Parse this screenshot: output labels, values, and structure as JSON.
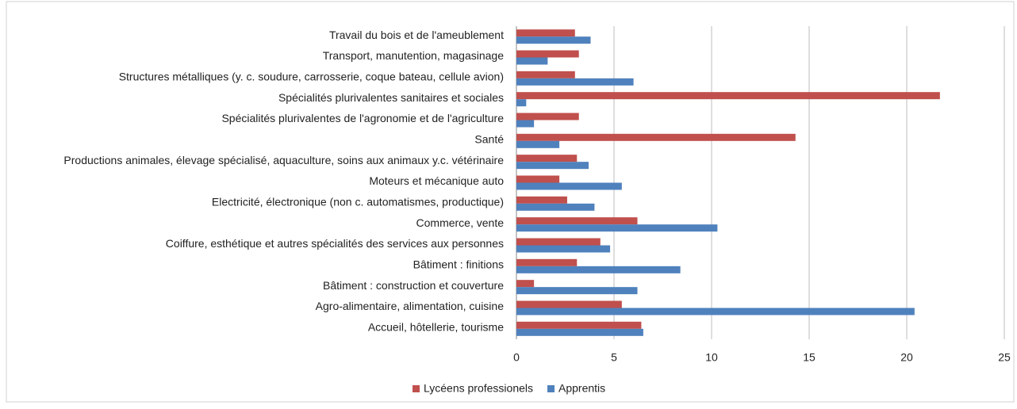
{
  "chart_data": {
    "type": "hbar",
    "categories": [
      "Accueil, hôtellerie, tourisme",
      "Agro-alimentaire, alimentation, cuisine",
      "Bâtiment : construction et couverture",
      "Bâtiment : finitions",
      "Coiffure, esthétique et autres spécialités des services aux personnes",
      "Commerce, vente",
      "Electricité, électronique (non c. automatismes, productique)",
      "Moteurs et mécanique auto",
      "Productions animales, élevage spécialisé, aquaculture, soins aux animaux y.c. vétérinaire",
      "Santé",
      "Spécialités plurivalentes de l'agronomie et de l'agriculture",
      "Spécialités plurivalentes sanitaires et sociales",
      "Structures métalliques (y. c. soudure, carrosserie, coque bateau, cellule avion)",
      "Transport, manutention, magasinage",
      "Travail du bois et de l'ameublement"
    ],
    "series": [
      {
        "name": "Lycéens professionels",
        "color": "#c0504d",
        "values": [
          6.4,
          5.4,
          0.9,
          3.1,
          4.3,
          6.2,
          2.6,
          2.2,
          3.1,
          14.3,
          3.2,
          21.7,
          3.0,
          3.2,
          3.0
        ]
      },
      {
        "name": "Apprentis",
        "color": "#4f81bd",
        "values": [
          6.5,
          20.4,
          6.2,
          8.4,
          4.8,
          10.3,
          4.0,
          5.4,
          3.7,
          2.2,
          0.9,
          0.5,
          6.0,
          1.6,
          3.8
        ]
      }
    ],
    "xlim": [
      0,
      25
    ],
    "xticks": [
      0,
      5,
      10,
      15,
      20,
      25
    ],
    "grid": true,
    "legend": "bottom"
  }
}
